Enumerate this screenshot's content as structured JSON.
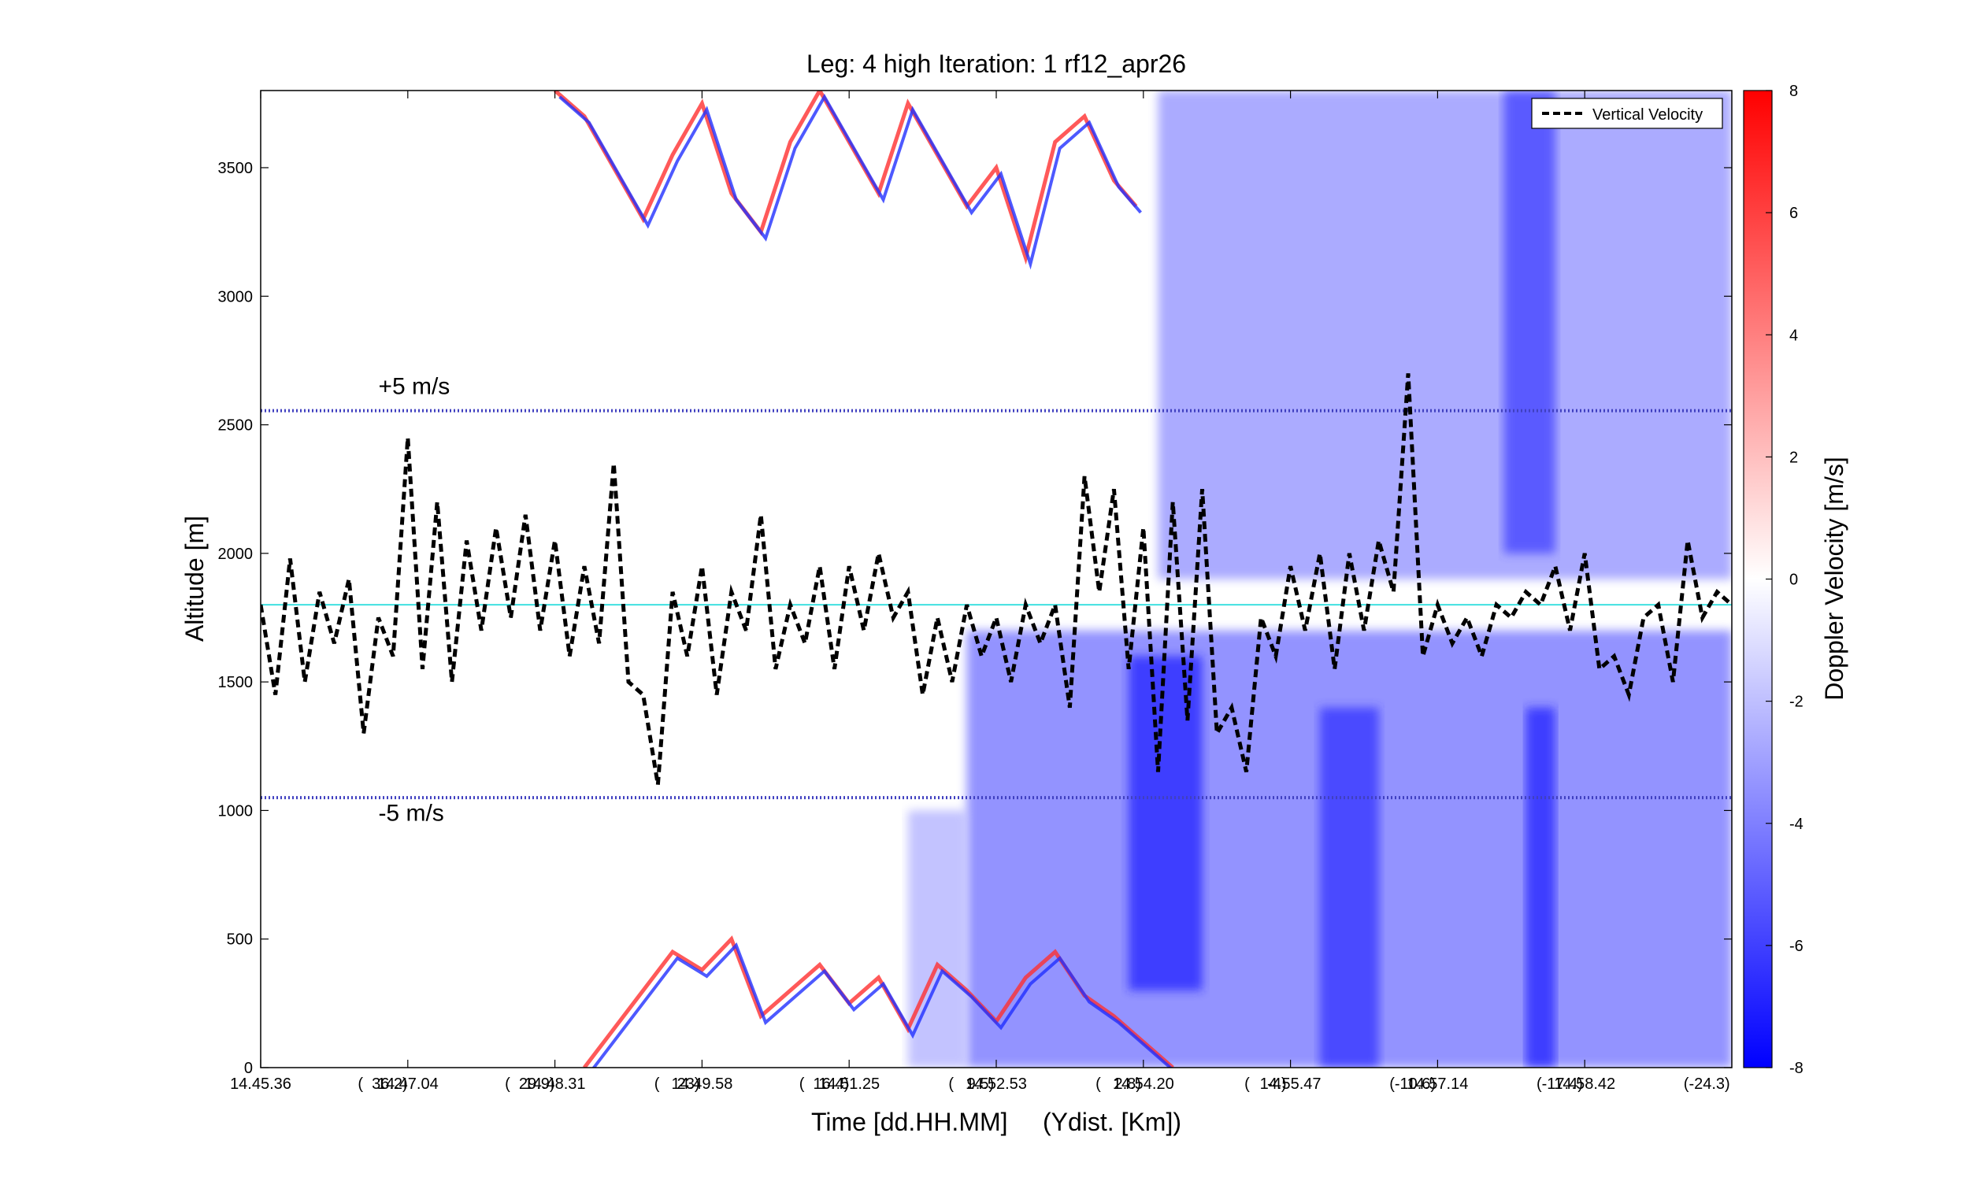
{
  "chart_data": {
    "type": "heatmap",
    "title": "Leg: 4 high Iteration: 1  rf12_apr26",
    "xlabel": "Time [dd.HH.MM]     (Ydist. [Km])",
    "ylabel": "Altitude [m]",
    "ylim": [
      0,
      3800
    ],
    "yticks": [
      0,
      500,
      1000,
      1500,
      2000,
      2500,
      3000,
      3500
    ],
    "xlim": [
      0,
      1000
    ],
    "xticks": [
      {
        "x": 0,
        "label": "14.45.36"
      },
      {
        "x": 83,
        "label": "(  36.2)"
      },
      {
        "x": 100,
        "label": "14.47.04"
      },
      {
        "x": 183,
        "label": "(  29.9)"
      },
      {
        "x": 200,
        "label": "14.48.31"
      },
      {
        "x": 283,
        "label": "(    23)"
      },
      {
        "x": 300,
        "label": "14.49.58"
      },
      {
        "x": 383,
        "label": "(  16.4)"
      },
      {
        "x": 400,
        "label": "14.51.25"
      },
      {
        "x": 483,
        "label": "(   9.5)"
      },
      {
        "x": 500,
        "label": "14.52.53"
      },
      {
        "x": 583,
        "label": "(   2.8)"
      },
      {
        "x": 600,
        "label": "14.54.20"
      },
      {
        "x": 683,
        "label": "(    -4)"
      },
      {
        "x": 700,
        "label": "14.55.47"
      },
      {
        "x": 783,
        "label": "(-10.6)"
      },
      {
        "x": 800,
        "label": "14.57.14"
      },
      {
        "x": 883,
        "label": "(-17.4)"
      },
      {
        "x": 900,
        "label": "14.58.42"
      },
      {
        "x": 983,
        "label": "(-24.3)"
      }
    ],
    "colorbar": {
      "label": "Doppler Velocity [m/s]",
      "range": [
        -8,
        8
      ],
      "ticks": [
        -8,
        -6,
        -4,
        -2,
        0,
        2,
        4,
        6,
        8
      ],
      "colors": {
        "negative": "#0000ff",
        "zero": "#ffffff",
        "positive": "#ff0000"
      }
    },
    "legend": {
      "position": "top-right",
      "entries": [
        "Vertical Velocity"
      ]
    },
    "series": [
      {
        "name": "Vertical Velocity",
        "style": "dashed",
        "color": "#000000",
        "x": [
          0,
          10,
          20,
          30,
          40,
          50,
          60,
          70,
          80,
          90,
          100,
          110,
          120,
          130,
          140,
          150,
          160,
          170,
          180,
          190,
          200,
          210,
          220,
          230,
          240,
          250,
          260,
          270,
          280,
          290,
          300,
          310,
          320,
          330,
          340,
          350,
          360,
          370,
          380,
          390,
          400,
          410,
          420,
          430,
          440,
          450,
          460,
          470,
          480,
          490,
          500,
          510,
          520,
          530,
          540,
          550,
          560,
          570,
          580,
          590,
          600,
          610,
          620,
          630,
          640,
          650,
          660,
          670,
          680,
          690,
          700,
          710,
          720,
          730,
          740,
          750,
          760,
          770,
          780,
          790,
          800,
          810,
          820,
          830,
          840,
          850,
          860,
          870,
          880,
          890,
          900,
          910,
          920,
          930,
          940,
          950,
          960,
          970,
          980,
          990,
          1000
        ],
        "y": [
          1800,
          1450,
          1980,
          1500,
          1850,
          1650,
          1900,
          1300,
          1750,
          1600,
          2450,
          1550,
          2200,
          1500,
          2050,
          1700,
          2100,
          1750,
          2150,
          1700,
          2050,
          1600,
          1950,
          1650,
          2350,
          1500,
          1450,
          1100,
          1850,
          1600,
          1950,
          1450,
          1850,
          1700,
          2150,
          1550,
          1800,
          1650,
          1950,
          1550,
          1950,
          1700,
          2000,
          1750,
          1850,
          1450,
          1750,
          1500,
          1800,
          1600,
          1750,
          1500,
          1800,
          1650,
          1800,
          1400,
          2300,
          1850,
          2250,
          1550,
          2100,
          1150,
          2200,
          1350,
          2250,
          1300,
          1400,
          1150,
          1750,
          1600,
          1950,
          1700,
          2000,
          1550,
          2000,
          1700,
          2050,
          1850,
          2700,
          1600,
          1800,
          1650,
          1750,
          1600,
          1800,
          1750,
          1850,
          1800,
          1950,
          1700,
          2000,
          1550,
          1600,
          1450,
          1750,
          1800,
          1500,
          2050,
          1750,
          1850,
          1800
        ]
      },
      {
        "name": "+5 m/s",
        "style": "dotted",
        "color": "#4040c0",
        "x": [
          0,
          1000
        ],
        "y": [
          2555,
          2555
        ]
      },
      {
        "name": "-5 m/s",
        "style": "dotted",
        "color": "#4040c0",
        "x": [
          0,
          1000
        ],
        "y": [
          1050,
          1050
        ]
      },
      {
        "name": "",
        "style": "solid",
        "color": "#40e0e0",
        "x": [
          0,
          1000
        ],
        "y": [
          1800,
          1800
        ]
      }
    ],
    "annotations": [
      {
        "text": "+5 m/s",
        "x": 80,
        "y": 2620
      },
      {
        "text": "-5 m/s",
        "x": 80,
        "y": 960
      }
    ],
    "regions": [
      {
        "x0": 610,
        "x1": 1000,
        "y0": 1900,
        "y1": 3800,
        "value": -3.5
      },
      {
        "x0": 480,
        "x1": 1000,
        "y0": 0,
        "y1": 1700,
        "value": -4.5
      },
      {
        "x0": 440,
        "x1": 480,
        "y0": 0,
        "y1": 1000,
        "value": -2.5
      },
      {
        "x0": 590,
        "x1": 640,
        "y0": 300,
        "y1": 1600,
        "value": -7
      },
      {
        "x0": 845,
        "x1": 880,
        "y0": 2000,
        "y1": 3800,
        "value": -6
      },
      {
        "x0": 860,
        "x1": 880,
        "y0": 0,
        "y1": 1400,
        "value": -7
      },
      {
        "x0": 720,
        "x1": 760,
        "y0": 0,
        "y1": 1400,
        "value": -6.5
      }
    ],
    "echo_bands": [
      {
        "x": [
          200,
          220,
          240,
          260,
          280,
          300,
          320,
          340,
          360,
          380,
          400,
          420,
          440,
          460,
          480,
          500,
          520,
          540,
          560,
          580,
          595
        ],
        "y": [
          3800,
          3700,
          3500,
          3300,
          3550,
          3750,
          3400,
          3250,
          3600,
          3800,
          3600,
          3400,
          3750,
          3550,
          3350,
          3500,
          3150,
          3600,
          3700,
          3450,
          3350
        ]
      },
      {
        "x": [
          220,
          240,
          260,
          280,
          300,
          320,
          340,
          360,
          380,
          400,
          420,
          440,
          460,
          480,
          500,
          520,
          540,
          560,
          580,
          600,
          620
        ],
        "y": [
          0,
          150,
          300,
          450,
          380,
          500,
          200,
          300,
          400,
          250,
          350,
          150,
          400,
          300,
          180,
          350,
          450,
          280,
          200,
          100,
          0
        ]
      }
    ]
  }
}
